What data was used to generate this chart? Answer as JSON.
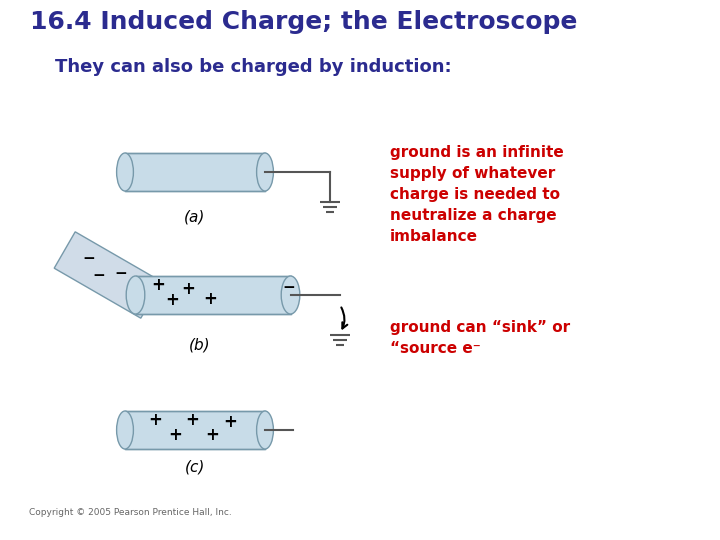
{
  "title": "16.4 Induced Charge; the Electroscope",
  "subtitle": "They can also be charged by induction:",
  "title_color": "#2b2b8f",
  "subtitle_color": "#2b2b8f",
  "red_text_color": "#cc0000",
  "annotation1": "ground is an infinite\nsupply of whatever\ncharge is needed to\nneutralize a charge\nimbalance",
  "annotation2": "ground can “sink” or\n“source e⁻",
  "label_a": "(a)",
  "label_b": "(b)",
  "label_c": "(c)",
  "copyright": "Copyright © 2005 Pearson Prentice Hall, Inc.",
  "bg_color": "#ffffff",
  "cyl_fill": "#c8dce8",
  "cyl_edge": "#7799aa",
  "rod_fill": "#d0dce8",
  "wire_color": "#555555",
  "ground_color": "#555555"
}
